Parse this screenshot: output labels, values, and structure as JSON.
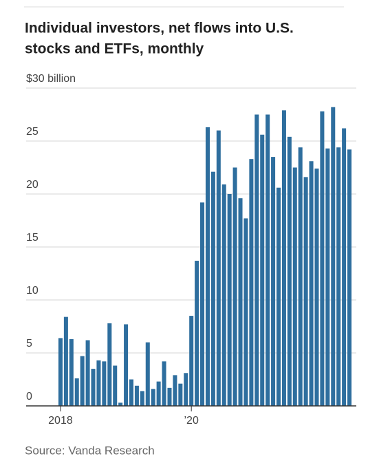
{
  "chart_data": {
    "type": "bar",
    "title_lines": [
      "Individual investors, net flows into U.S.",
      "stocks and ETFs, monthly"
    ],
    "source": "Source: Vanda Research",
    "color": "#2e6e9e",
    "categories": [
      "2018",
      null,
      null,
      null,
      null,
      null,
      null,
      null,
      null,
      null,
      null,
      null,
      null,
      null,
      null,
      null,
      null,
      null,
      null,
      null,
      null,
      null,
      null,
      null,
      "’20",
      null,
      null,
      null,
      null,
      null,
      null,
      null,
      null,
      null,
      null,
      null,
      null,
      null,
      null,
      null,
      null,
      null,
      null,
      null,
      null,
      null,
      null,
      null,
      null,
      null,
      null,
      null,
      null,
      null
    ],
    "values": [
      6.4,
      8.4,
      6.3,
      2.6,
      4.7,
      6.2,
      3.5,
      4.3,
      4.2,
      7.8,
      3.8,
      0.3,
      7.7,
      2.5,
      1.9,
      1.4,
      6.0,
      1.6,
      2.3,
      4.2,
      1.7,
      2.9,
      2.1,
      3.1,
      8.5,
      13.7,
      19.2,
      26.3,
      22.1,
      26.0,
      20.9,
      20.0,
      22.5,
      19.6,
      17.7,
      23.3,
      27.5,
      25.6,
      27.5,
      23.5,
      20.6,
      27.9,
      25.4,
      22.5,
      24.4,
      21.6,
      23.1,
      22.4,
      27.8,
      24.3,
      28.2,
      24.4,
      26.2,
      24.2
    ],
    "ylim": [
      0,
      30
    ],
    "yticks": [
      0,
      5,
      10,
      15,
      20,
      25,
      {
        "value": 30,
        "label": "$30 billion"
      }
    ],
    "grid": true
  }
}
